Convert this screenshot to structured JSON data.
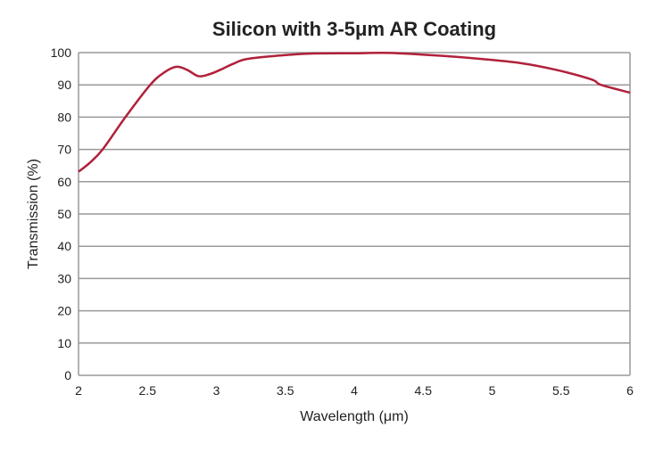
{
  "chart_data": {
    "type": "line",
    "title": "Silicon with 3-5μm AR Coating",
    "xlabel": "Wavelength (μm)",
    "ylabel": "Transmission (%)",
    "xlim": [
      2,
      6
    ],
    "ylim": [
      0,
      100
    ],
    "xticks": [
      "2",
      "2.5",
      "3",
      "3.5",
      "4",
      "4.5",
      "5",
      "5.5",
      "6"
    ],
    "yticks": [
      "0",
      "10",
      "20",
      "30",
      "40",
      "50",
      "60",
      "70",
      "80",
      "90",
      "100"
    ],
    "grid": "horizontal",
    "line_color": "#b0213a",
    "series": [
      {
        "x": [
          2.0,
          2.08,
          2.175,
          2.34,
          2.52,
          2.62,
          2.71,
          2.79,
          2.87,
          2.95,
          3.03,
          3.12,
          3.22,
          3.46,
          3.68,
          4.0,
          4.26,
          4.6,
          4.9,
          5.2,
          5.46,
          5.72,
          5.79,
          6.0
        ],
        "y": [
          63.1,
          65.8,
          70,
          80,
          90,
          93.8,
          95.6,
          94.6,
          92.7,
          93.3,
          94.7,
          96.5,
          98,
          99.1,
          99.7,
          99.8,
          99.9,
          99.1,
          98.1,
          96.8,
          94.7,
          91.7,
          90,
          87.6
        ]
      }
    ]
  }
}
